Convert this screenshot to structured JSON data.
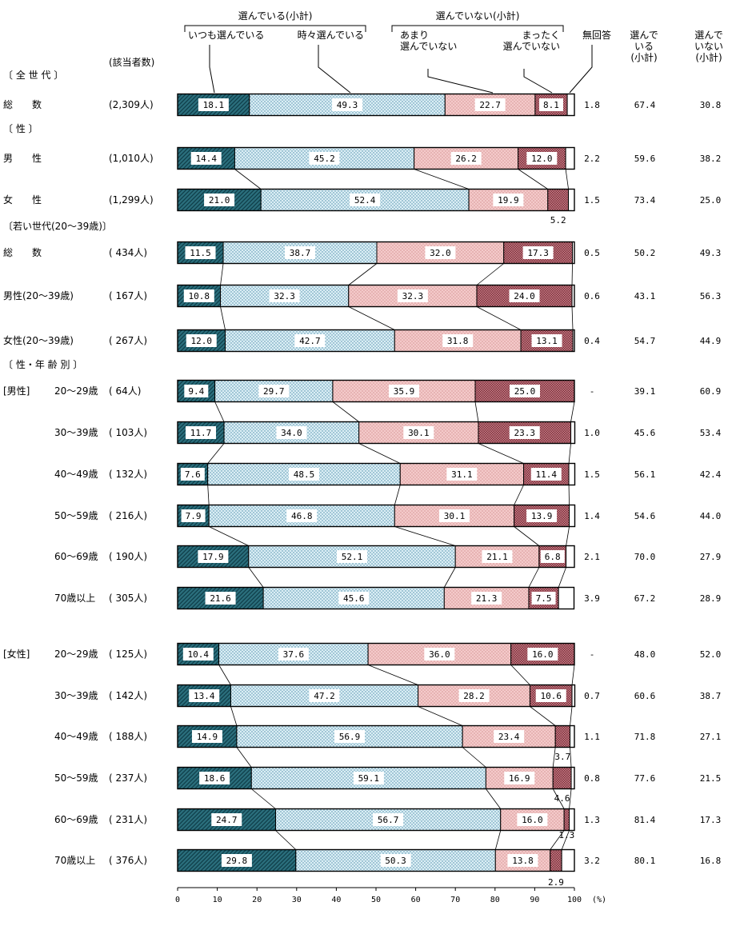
{
  "chart_data": {
    "type": "bar",
    "orientation": "horizontal",
    "stacked": true,
    "xlim": [
      0,
      100
    ],
    "x_ticks": [
      "0",
      "10",
      "20",
      "30",
      "40",
      "50",
      "60",
      "70",
      "80",
      "90",
      "100"
    ],
    "x_unit": "(%)",
    "header": {
      "group_selecting": "選んでいる(小計)",
      "group_not_selecting": "選んでいない(小計)",
      "count_header": "(該当者数)",
      "col_no_answer": "無回答",
      "col_subtotal_yes": [
        "選んで",
        "いる",
        "(小計)"
      ],
      "col_subtotal_no": [
        "選んで",
        "いない",
        "(小計)"
      ]
    },
    "series": [
      {
        "name": "いつも選んでいる",
        "label_lines": [
          "いつも選んでいる"
        ],
        "color": "#2b6f7d"
      },
      {
        "name": "時々選んでいる",
        "label_lines": [
          "時々選んでいる"
        ],
        "color": "#d6ecf3"
      },
      {
        "name": "あまり選んでいない",
        "label_lines": [
          "あまり",
          "選んでいない"
        ],
        "color": "#f2c4c4"
      },
      {
        "name": "まったく選んでいない",
        "label_lines": [
          "まったく",
          "選んでいない"
        ],
        "color": "#b9636e"
      },
      {
        "name": "無回答",
        "label_lines": [
          "無回答"
        ],
        "color": "#ffffff"
      }
    ],
    "section_labels": [
      {
        "text": "〔 全 世 代 〕",
        "before_row": 0
      },
      {
        "text": "〔  性  〕",
        "before_row": 1
      },
      {
        "text": "〔若い世代(20～39歳)〕",
        "before_row": 3
      },
      {
        "text": "〔 性・年 齢 別 〕",
        "before_row": 6
      }
    ],
    "rows": [
      {
        "label": "総　　数",
        "group": "",
        "count": "(2,309人)",
        "values": [
          18.1,
          49.3,
          22.7,
          8.1,
          1.8
        ],
        "labels": [
          "18.1",
          "49.3",
          "22.7",
          "8.1",
          "1.8"
        ],
        "subtotal_yes": "67.4",
        "subtotal_no": "30.8"
      },
      {
        "label": "男　　性",
        "group": "",
        "count": "(1,010人)",
        "values": [
          14.4,
          45.2,
          26.2,
          12.0,
          2.2
        ],
        "labels": [
          "14.4",
          "45.2",
          "26.2",
          "12.0",
          "2.2"
        ],
        "subtotal_yes": "59.6",
        "subtotal_no": "38.2"
      },
      {
        "label": "女　　性",
        "group": "",
        "count": "(1,299人)",
        "values": [
          21.0,
          52.4,
          19.9,
          5.2,
          1.5
        ],
        "labels": [
          "21.0",
          "52.4",
          "19.9",
          "5.2",
          "1.5"
        ],
        "subtotal_yes": "73.4",
        "subtotal_no": "25.0"
      },
      {
        "label": "総　　数",
        "group": "",
        "count": "( 434人)",
        "values": [
          11.5,
          38.7,
          32.0,
          17.3,
          0.5
        ],
        "labels": [
          "11.5",
          "38.7",
          "32.0",
          "17.3",
          "0.5"
        ],
        "subtotal_yes": "50.2",
        "subtotal_no": "49.3"
      },
      {
        "label": "男性(20～39歳)",
        "group": "",
        "count": "( 167人)",
        "values": [
          10.8,
          32.3,
          32.3,
          24.0,
          0.6
        ],
        "labels": [
          "10.8",
          "32.3",
          "32.3",
          "24.0",
          "0.6"
        ],
        "subtotal_yes": "43.1",
        "subtotal_no": "56.3"
      },
      {
        "label": "女性(20～39歳)",
        "group": "",
        "count": "( 267人)",
        "values": [
          12.0,
          42.7,
          31.8,
          13.1,
          0.4
        ],
        "labels": [
          "12.0",
          "42.7",
          "31.8",
          "13.1",
          "0.4"
        ],
        "subtotal_yes": "54.7",
        "subtotal_no": "44.9"
      },
      {
        "label": "20～29歳",
        "group": "[男性]",
        "count": "( 64人)",
        "values": [
          9.4,
          29.7,
          35.9,
          25.0,
          0
        ],
        "labels": [
          "9.4",
          "29.7",
          "35.9",
          "25.0",
          "-"
        ],
        "subtotal_yes": "39.1",
        "subtotal_no": "60.9"
      },
      {
        "label": "30～39歳",
        "group": "",
        "count": "( 103人)",
        "values": [
          11.7,
          34.0,
          30.1,
          23.3,
          1.0
        ],
        "labels": [
          "11.7",
          "34.0",
          "30.1",
          "23.3",
          "1.0"
        ],
        "subtotal_yes": "45.6",
        "subtotal_no": "53.4"
      },
      {
        "label": "40～49歳",
        "group": "",
        "count": "( 132人)",
        "values": [
          7.6,
          48.5,
          31.1,
          11.4,
          1.5
        ],
        "labels": [
          "7.6",
          "48.5",
          "31.1",
          "11.4",
          "1.5"
        ],
        "subtotal_yes": "56.1",
        "subtotal_no": "42.4"
      },
      {
        "label": "50～59歳",
        "group": "",
        "count": "( 216人)",
        "values": [
          7.9,
          46.8,
          30.1,
          13.9,
          1.4
        ],
        "labels": [
          "7.9",
          "46.8",
          "30.1",
          "13.9",
          "1.4"
        ],
        "subtotal_yes": "54.6",
        "subtotal_no": "44.0"
      },
      {
        "label": "60～69歳",
        "group": "",
        "count": "( 190人)",
        "values": [
          17.9,
          52.1,
          21.1,
          6.8,
          2.1
        ],
        "labels": [
          "17.9",
          "52.1",
          "21.1",
          "6.8",
          "2.1"
        ],
        "subtotal_yes": "70.0",
        "subtotal_no": "27.9"
      },
      {
        "label": "70歳以上",
        "group": "",
        "count": "( 305人)",
        "values": [
          21.6,
          45.6,
          21.3,
          7.5,
          3.9
        ],
        "labels": [
          "21.6",
          "45.6",
          "21.3",
          "7.5",
          "3.9"
        ],
        "subtotal_yes": "67.2",
        "subtotal_no": "28.9"
      },
      {
        "label": "20～29歳",
        "group": "[女性]",
        "count": "( 125人)",
        "values": [
          10.4,
          37.6,
          36.0,
          16.0,
          0
        ],
        "labels": [
          "10.4",
          "37.6",
          "36.0",
          "16.0",
          "-"
        ],
        "subtotal_yes": "48.0",
        "subtotal_no": "52.0"
      },
      {
        "label": "30～39歳",
        "group": "",
        "count": "( 142人)",
        "values": [
          13.4,
          47.2,
          28.2,
          10.6,
          0.7
        ],
        "labels": [
          "13.4",
          "47.2",
          "28.2",
          "10.6",
          "0.7"
        ],
        "subtotal_yes": "60.6",
        "subtotal_no": "38.7"
      },
      {
        "label": "40～49歳",
        "group": "",
        "count": "( 188人)",
        "values": [
          14.9,
          56.9,
          23.4,
          3.7,
          1.1
        ],
        "labels": [
          "14.9",
          "56.9",
          "23.4",
          "3.7",
          "1.1"
        ],
        "subtotal_yes": "71.8",
        "subtotal_no": "27.1"
      },
      {
        "label": "50～59歳",
        "group": "",
        "count": "( 237人)",
        "values": [
          18.6,
          59.1,
          16.9,
          4.6,
          0.8
        ],
        "labels": [
          "18.6",
          "59.1",
          "16.9",
          "4.6",
          "0.8"
        ],
        "subtotal_yes": "77.6",
        "subtotal_no": "21.5"
      },
      {
        "label": "60～69歳",
        "group": "",
        "count": "( 231人)",
        "values": [
          24.7,
          56.7,
          16.0,
          1.3,
          1.3
        ],
        "labels": [
          "24.7",
          "56.7",
          "16.0",
          "1.3",
          "1.3"
        ],
        "subtotal_yes": "81.4",
        "subtotal_no": "17.3"
      },
      {
        "label": "70歳以上",
        "group": "",
        "count": "( 376人)",
        "values": [
          29.8,
          50.3,
          13.8,
          2.9,
          3.2
        ],
        "labels": [
          "29.8",
          "50.3",
          "13.8",
          "2.9",
          "3.2"
        ],
        "subtotal_yes": "80.1",
        "subtotal_no": "16.8"
      }
    ]
  }
}
